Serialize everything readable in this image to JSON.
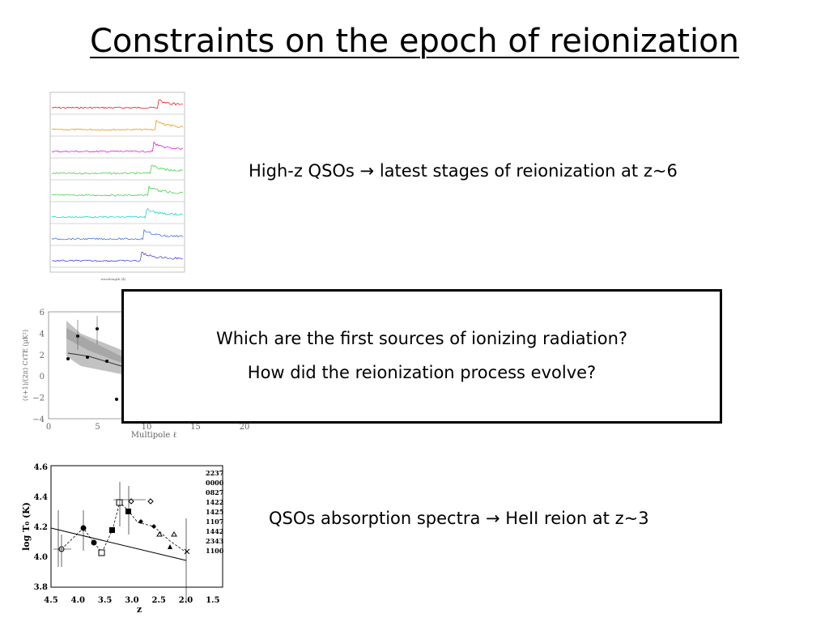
{
  "title": "Constraints on the epoch of reionization",
  "points": [
    "High-z QSOs → latest stages of reionization at z~6",
    "QSOs absorption spectra → HeII reion at z~3"
  ],
  "box": [
    "Which are the first sources of ionizing radiation?",
    "How did the reionization process evolve?"
  ],
  "figure_te": {
    "xlabel": "Multipole ℓ",
    "ylabel": "(ℓ+1)/(2π) CℓTE (μK²)",
    "xticks": [
      "0",
      "5",
      "10",
      "15",
      "20"
    ],
    "yticks": [
      "6",
      "4",
      "2",
      "0",
      "−2",
      "−4"
    ]
  },
  "figure_temp": {
    "xlabel": "z",
    "ylabel": "log T₀ (K)",
    "xticks": [
      "4.5",
      "4.0",
      "3.5",
      "3.0",
      "2.5",
      "2.0",
      "1.5"
    ],
    "yticks": [
      "4.6",
      "4.4",
      "4.2",
      "4.0",
      "3.8"
    ],
    "legend": [
      "2237",
      "0000",
      "0827",
      "1422",
      "1425",
      "1107",
      "1442",
      "2343",
      "1100"
    ]
  }
}
